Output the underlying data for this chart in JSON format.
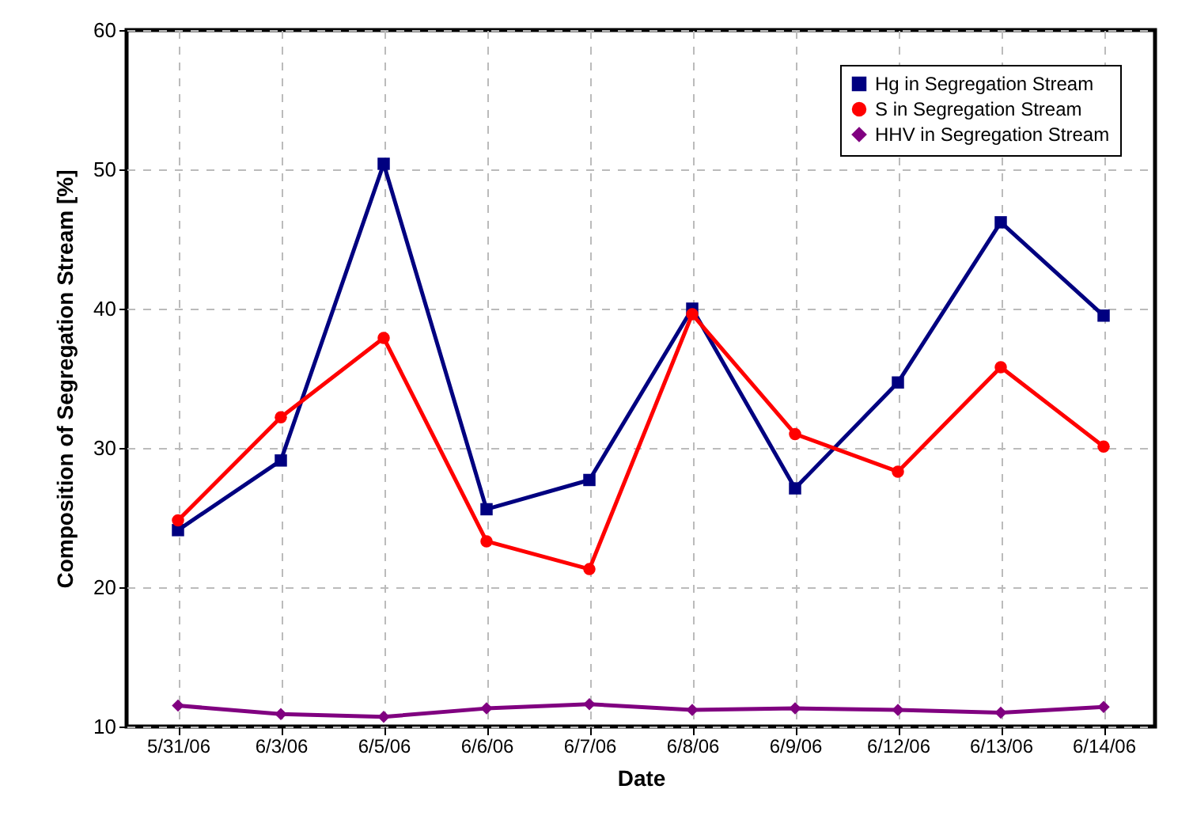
{
  "chart_data": {
    "type": "line",
    "xlabel": "Date",
    "ylabel": "Composition of Segregation Stream [%]",
    "categories": [
      "5/31/06",
      "6/3/06",
      "6/5/06",
      "6/6/06",
      "6/7/06",
      "6/8/06",
      "6/9/06",
      "6/12/06",
      "6/13/06",
      "6/14/06"
    ],
    "series": [
      {
        "name": "Hg in Segregation Stream",
        "color": "#000080",
        "marker": "square",
        "values": [
          24.1,
          29.1,
          50.4,
          25.6,
          27.7,
          40.0,
          27.1,
          34.7,
          46.2,
          39.5
        ]
      },
      {
        "name": "S in Segregation Stream",
        "color": "#ff0000",
        "marker": "circle",
        "values": [
          24.8,
          32.2,
          37.9,
          23.3,
          21.3,
          39.6,
          31.0,
          28.3,
          35.8,
          30.1
        ]
      },
      {
        "name": "HHV in Segregation Stream",
        "color": "#800080",
        "marker": "diamond",
        "values": [
          11.5,
          10.9,
          10.7,
          11.3,
          11.6,
          11.2,
          11.3,
          11.2,
          11.0,
          11.4
        ]
      }
    ],
    "ylim": [
      10,
      60
    ],
    "yticks": [
      10,
      20,
      30,
      40,
      50,
      60
    ],
    "grid": true,
    "legend": "top right"
  }
}
